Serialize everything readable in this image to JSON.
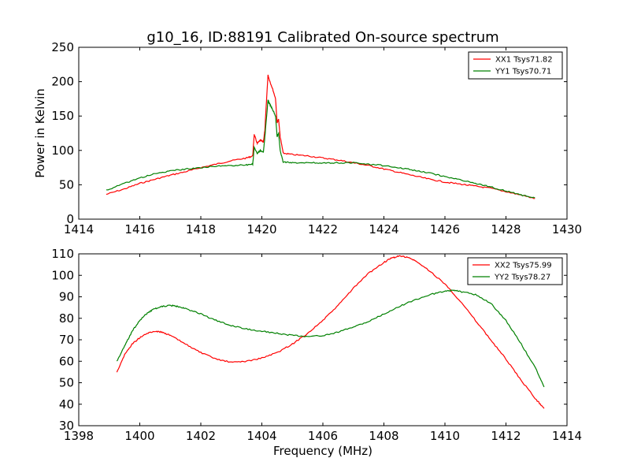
{
  "title": "g10_16, ID:88191 Calibrated On-source spectrum",
  "chart_data": [
    {
      "type": "line",
      "ylabel": "Power in Kelvin",
      "xlabel": "",
      "xlim": [
        1414,
        1430
      ],
      "ylim": [
        0,
        250
      ],
      "xticks": [
        1414,
        1416,
        1418,
        1420,
        1422,
        1424,
        1426,
        1428,
        1430
      ],
      "yticks": [
        0,
        50,
        100,
        150,
        200,
        250
      ],
      "legend": "top-right",
      "grid": false,
      "series": [
        {
          "name": "XX1 Tsys71.82",
          "color": "#ff0000",
          "x": [
            1414.9,
            1415.5,
            1416.0,
            1416.5,
            1417.0,
            1417.5,
            1418.0,
            1418.5,
            1419.0,
            1419.5,
            1419.7,
            1419.75,
            1419.85,
            1419.95,
            1420.05,
            1420.1,
            1420.2,
            1420.25,
            1420.35,
            1420.45,
            1420.5,
            1420.55,
            1420.6,
            1420.7,
            1421.0,
            1421.5,
            1422.0,
            1422.5,
            1423.0,
            1423.5,
            1424.0,
            1424.5,
            1425.0,
            1425.5,
            1426.0,
            1426.5,
            1427.0,
            1427.5,
            1428.0,
            1428.5,
            1428.95
          ],
          "values": [
            36,
            44,
            52,
            58,
            64,
            69,
            75,
            80,
            85,
            89,
            92,
            123,
            110,
            115,
            112,
            130,
            210,
            202,
            190,
            175,
            140,
            145,
            120,
            96,
            94,
            92,
            89,
            86,
            82,
            78,
            73,
            68,
            63,
            58,
            54,
            51,
            48,
            45,
            40,
            35,
            30
          ]
        },
        {
          "name": "YY1 Tsys70.71",
          "color": "#008000",
          "x": [
            1414.9,
            1415.5,
            1416.0,
            1416.5,
            1417.0,
            1417.5,
            1418.0,
            1418.5,
            1419.0,
            1419.5,
            1419.7,
            1419.75,
            1419.85,
            1419.95,
            1420.05,
            1420.1,
            1420.2,
            1420.25,
            1420.35,
            1420.45,
            1420.5,
            1420.55,
            1420.6,
            1420.7,
            1421.0,
            1421.5,
            1422.0,
            1422.5,
            1423.0,
            1423.5,
            1424.0,
            1424.5,
            1425.0,
            1425.5,
            1426.0,
            1426.5,
            1427.0,
            1427.5,
            1428.0,
            1428.5,
            1428.95
          ],
          "values": [
            42,
            52,
            60,
            66,
            70,
            73,
            75,
            77,
            78,
            79,
            80,
            104,
            96,
            100,
            97,
            120,
            173,
            168,
            160,
            150,
            120,
            125,
            100,
            83,
            82,
            82,
            82,
            82,
            82,
            80,
            78,
            75,
            71,
            67,
            62,
            57,
            52,
            47,
            41,
            35,
            31
          ]
        }
      ]
    },
    {
      "type": "line",
      "ylabel": "",
      "xlabel": "Frequency (MHz)",
      "xlim": [
        1398,
        1414
      ],
      "ylim": [
        30,
        110
      ],
      "xticks": [
        1398,
        1400,
        1402,
        1404,
        1406,
        1408,
        1410,
        1412,
        1414
      ],
      "yticks": [
        30,
        40,
        50,
        60,
        70,
        80,
        90,
        100,
        110
      ],
      "legend": "top-right",
      "grid": false,
      "series": [
        {
          "name": "XX2 Tsys75.99",
          "color": "#ff0000",
          "x": [
            1399.25,
            1399.5,
            1399.75,
            1400.0,
            1400.25,
            1400.5,
            1400.75,
            1401.0,
            1401.5,
            1402.0,
            1402.5,
            1403.0,
            1403.5,
            1404.0,
            1404.5,
            1405.0,
            1405.5,
            1406.0,
            1406.5,
            1407.0,
            1407.5,
            1408.0,
            1408.25,
            1408.5,
            1408.75,
            1409.0,
            1409.5,
            1410.0,
            1410.5,
            1411.0,
            1411.5,
            1412.0,
            1412.5,
            1413.0,
            1413.25
          ],
          "values": [
            55,
            63,
            68,
            71,
            73,
            74,
            73.5,
            72,
            68,
            64,
            61,
            59.5,
            60,
            61.5,
            64,
            68,
            73,
            79,
            86,
            94,
            101,
            106,
            108,
            109,
            108.5,
            107,
            102,
            96,
            88,
            79,
            70,
            61,
            51,
            42,
            38
          ]
        },
        {
          "name": "YY2 Tsys78.27",
          "color": "#008000",
          "x": [
            1399.25,
            1399.5,
            1399.75,
            1400.0,
            1400.25,
            1400.5,
            1400.75,
            1401.0,
            1401.25,
            1401.5,
            1402.0,
            1402.5,
            1403.0,
            1403.5,
            1404.0,
            1404.5,
            1405.0,
            1405.5,
            1406.0,
            1406.5,
            1407.0,
            1407.5,
            1408.0,
            1408.5,
            1409.0,
            1409.5,
            1410.0,
            1410.25,
            1410.5,
            1411.0,
            1411.5,
            1412.0,
            1412.5,
            1413.0,
            1413.25
          ],
          "values": [
            60,
            67,
            74,
            79,
            82.5,
            84.5,
            85.5,
            86,
            85.5,
            84.5,
            82,
            79,
            76.5,
            75,
            74,
            73,
            72,
            71.5,
            72,
            73.5,
            76,
            78.5,
            82,
            85.5,
            88.5,
            91,
            92.5,
            93,
            92.5,
            91,
            87,
            79,
            68,
            56,
            48
          ]
        }
      ]
    }
  ]
}
